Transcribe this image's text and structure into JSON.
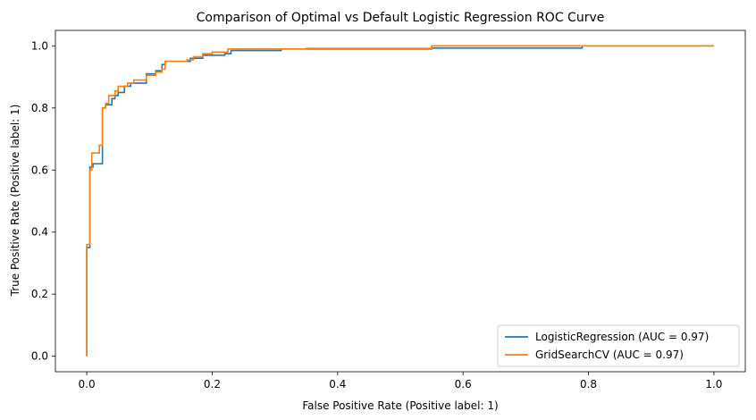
{
  "chart_data": {
    "type": "line",
    "title": "Comparison of Optimal vs Default Logistic Regression ROC Curve",
    "xlabel": "False Positive Rate (Positive label: 1)",
    "ylabel": "True Positive Rate (Positive label: 1)",
    "xlim": [
      -0.05,
      1.05
    ],
    "ylim": [
      -0.05,
      1.05
    ],
    "xticks": [
      0.0,
      0.2,
      0.4,
      0.6,
      0.8,
      1.0
    ],
    "yticks": [
      0.0,
      0.2,
      0.4,
      0.6,
      0.8,
      1.0
    ],
    "xtick_labels": [
      "0.0",
      "0.2",
      "0.4",
      "0.6",
      "0.8",
      "1.0"
    ],
    "ytick_labels": [
      "0.0",
      "0.2",
      "0.4",
      "0.6",
      "0.8",
      "1.0"
    ],
    "grid": false,
    "legend_position": "lower-right",
    "series": [
      {
        "name": "LogisticRegression (AUC = 0.97)",
        "color": "#1f77b4",
        "points": [
          [
            0,
            0
          ],
          [
            0,
            0.35
          ],
          [
            0.005,
            0.35
          ],
          [
            0.005,
            0.61
          ],
          [
            0.01,
            0.61
          ],
          [
            0.01,
            0.62
          ],
          [
            0.025,
            0.62
          ],
          [
            0.025,
            0.8
          ],
          [
            0.03,
            0.8
          ],
          [
            0.03,
            0.81
          ],
          [
            0.04,
            0.81
          ],
          [
            0.04,
            0.83
          ],
          [
            0.045,
            0.83
          ],
          [
            0.045,
            0.84
          ],
          [
            0.05,
            0.84
          ],
          [
            0.05,
            0.85
          ],
          [
            0.06,
            0.85
          ],
          [
            0.06,
            0.87
          ],
          [
            0.07,
            0.87
          ],
          [
            0.07,
            0.88
          ],
          [
            0.095,
            0.88
          ],
          [
            0.095,
            0.91
          ],
          [
            0.11,
            0.91
          ],
          [
            0.11,
            0.92
          ],
          [
            0.12,
            0.92
          ],
          [
            0.12,
            0.94
          ],
          [
            0.125,
            0.94
          ],
          [
            0.125,
            0.95
          ],
          [
            0.165,
            0.95
          ],
          [
            0.165,
            0.96
          ],
          [
            0.185,
            0.96
          ],
          [
            0.185,
            0.97
          ],
          [
            0.22,
            0.97
          ],
          [
            0.22,
            0.975
          ],
          [
            0.23,
            0.975
          ],
          [
            0.23,
            0.985
          ],
          [
            0.31,
            0.985
          ],
          [
            0.31,
            0.99
          ],
          [
            0.55,
            0.99
          ],
          [
            0.55,
            0.993
          ],
          [
            0.79,
            0.993
          ],
          [
            0.79,
            1.0
          ],
          [
            1.0,
            1.0
          ]
        ]
      },
      {
        "name": "GridSearchCV (AUC = 0.97)",
        "color": "#ff7f0e",
        "points": [
          [
            0,
            0
          ],
          [
            0,
            0.36
          ],
          [
            0.005,
            0.36
          ],
          [
            0.005,
            0.6
          ],
          [
            0.008,
            0.6
          ],
          [
            0.008,
            0.655
          ],
          [
            0.02,
            0.655
          ],
          [
            0.02,
            0.68
          ],
          [
            0.025,
            0.68
          ],
          [
            0.025,
            0.8
          ],
          [
            0.03,
            0.8
          ],
          [
            0.03,
            0.815
          ],
          [
            0.035,
            0.815
          ],
          [
            0.035,
            0.84
          ],
          [
            0.045,
            0.84
          ],
          [
            0.045,
            0.855
          ],
          [
            0.05,
            0.855
          ],
          [
            0.05,
            0.87
          ],
          [
            0.065,
            0.87
          ],
          [
            0.065,
            0.88
          ],
          [
            0.075,
            0.88
          ],
          [
            0.075,
            0.89
          ],
          [
            0.095,
            0.89
          ],
          [
            0.095,
            0.905
          ],
          [
            0.11,
            0.905
          ],
          [
            0.11,
            0.915
          ],
          [
            0.12,
            0.915
          ],
          [
            0.12,
            0.925
          ],
          [
            0.125,
            0.925
          ],
          [
            0.125,
            0.95
          ],
          [
            0.16,
            0.95
          ],
          [
            0.16,
            0.955
          ],
          [
            0.17,
            0.955
          ],
          [
            0.17,
            0.965
          ],
          [
            0.185,
            0.965
          ],
          [
            0.185,
            0.975
          ],
          [
            0.2,
            0.975
          ],
          [
            0.2,
            0.98
          ],
          [
            0.225,
            0.98
          ],
          [
            0.225,
            0.99
          ],
          [
            0.35,
            0.99
          ],
          [
            0.35,
            0.992
          ],
          [
            0.55,
            0.992
          ],
          [
            0.55,
            1.0
          ],
          [
            1.0,
            1.0
          ]
        ]
      }
    ]
  }
}
